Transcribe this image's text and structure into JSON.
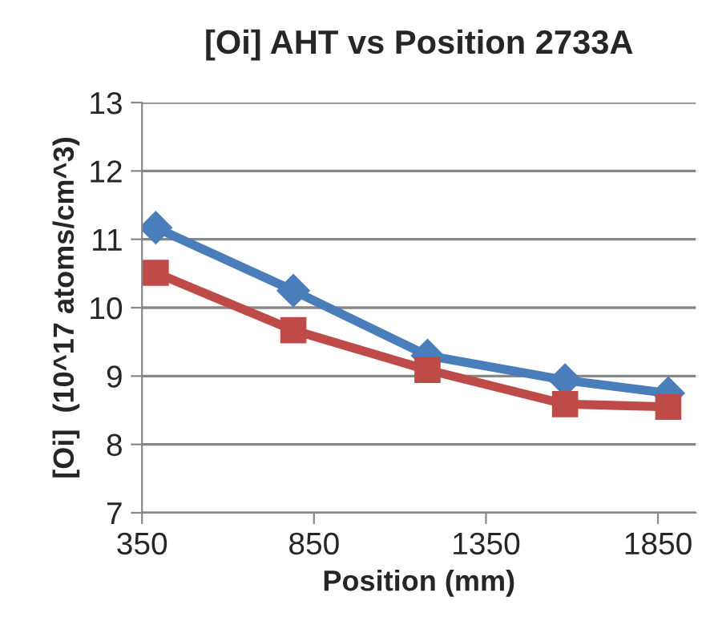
{
  "chart_data": {
    "type": "line",
    "title": "[Oi] AHT vs Position 2733A",
    "xlabel": "Position (mm)",
    "ylabel": "[Oi]  (10^17 atoms/cm^3)",
    "x": [
      390,
      790,
      1180,
      1580,
      1880
    ],
    "series": [
      {
        "color": "#4a7ebb",
        "marker": "diamond",
        "values": [
          11.17,
          10.25,
          9.3,
          8.94,
          8.75
        ]
      },
      {
        "color": "#be4b48",
        "marker": "square",
        "values": [
          10.51,
          9.67,
          9.09,
          8.59,
          8.55
        ]
      }
    ],
    "xlim": [
      350,
      1960
    ],
    "xticks": [
      350,
      850,
      1350,
      1850
    ],
    "ylim": [
      7,
      13
    ],
    "yticks": [
      7,
      8,
      9,
      10,
      11,
      12,
      13
    ],
    "grid": "y",
    "legend": false
  }
}
